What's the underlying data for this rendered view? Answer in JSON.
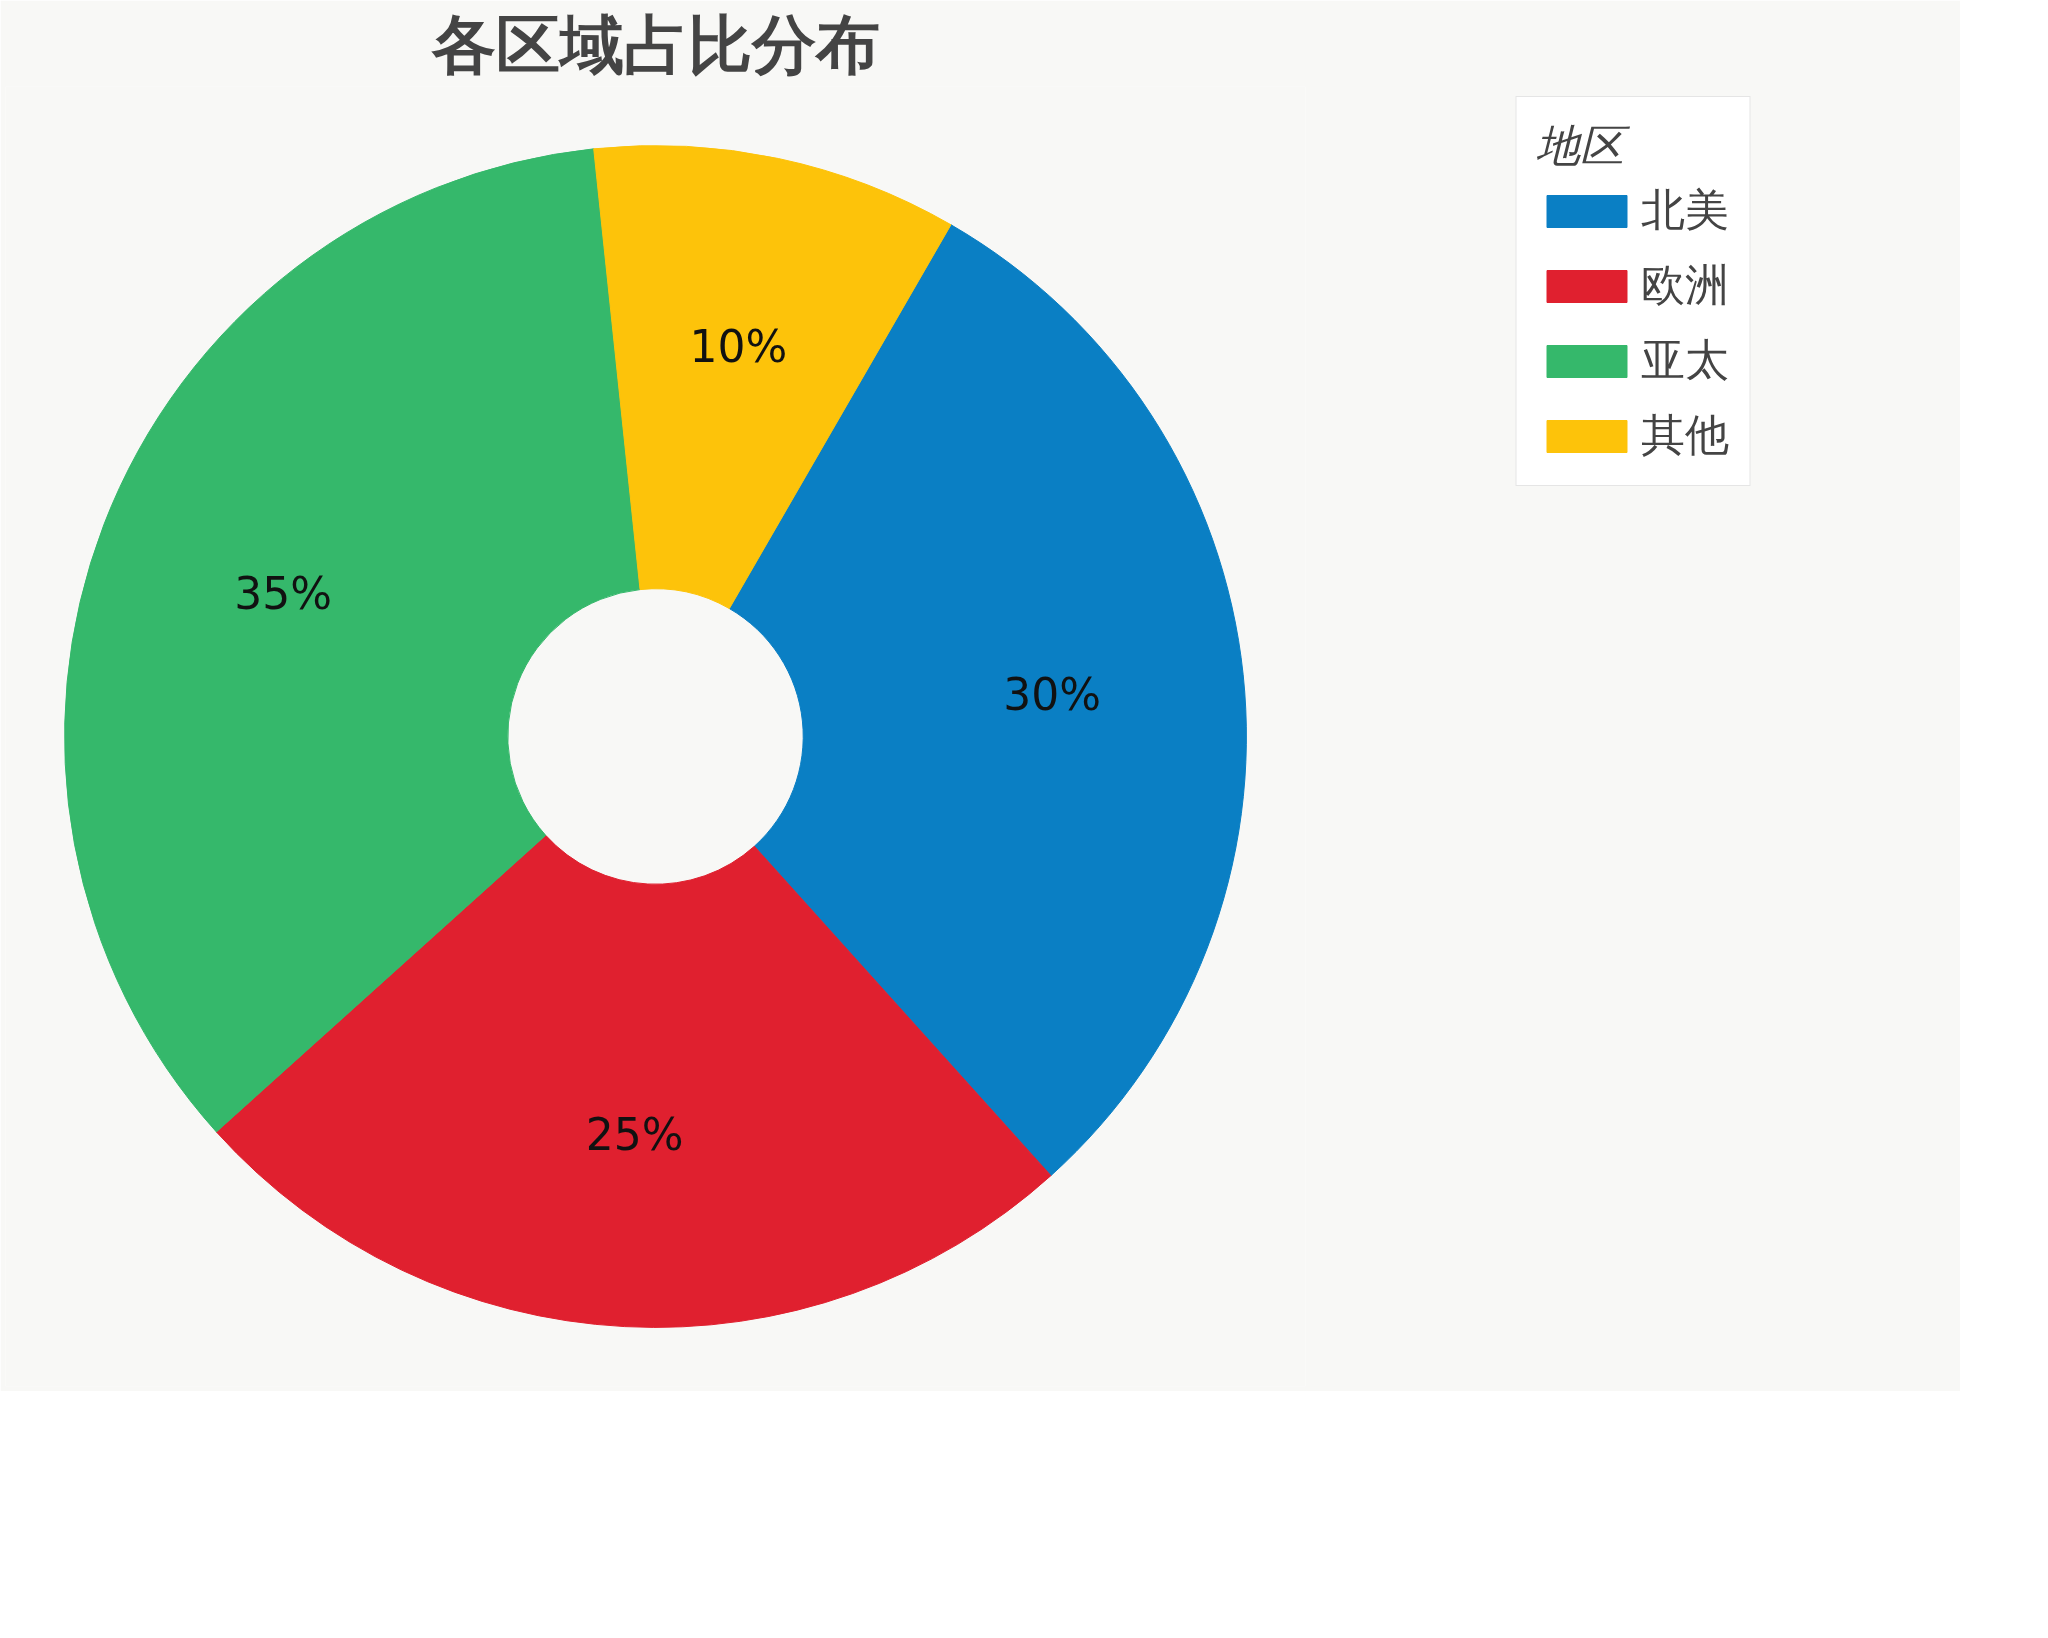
{
  "chart_data": {
    "type": "donut",
    "title": "各区域占比分布",
    "legend_title": "地区",
    "categories": [
      "北美",
      "欧洲",
      "亚太",
      "其他"
    ],
    "values": [
      30,
      25,
      35,
      10
    ],
    "colors": [
      "#0a7fc4",
      "#e0202f",
      "#35b86b",
      "#fdc30a"
    ],
    "value_labels": [
      "30%",
      "25%",
      "35%",
      "10%"
    ],
    "legend": "top right"
  }
}
